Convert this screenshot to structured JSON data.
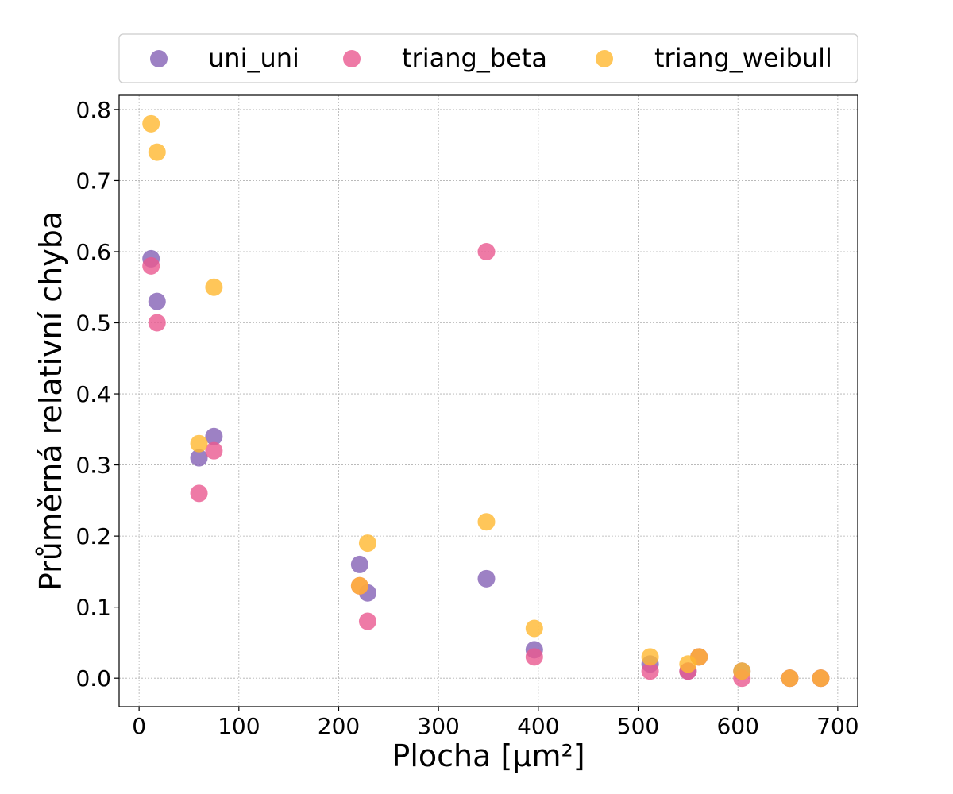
{
  "chart_data": {
    "type": "scatter",
    "title": "",
    "xlabel": "Plocha [µm²]",
    "ylabel": "Průměrná relativní chyba",
    "xlim": [
      -20,
      720
    ],
    "ylim": [
      -0.04,
      0.82
    ],
    "xticks": [
      0,
      100,
      200,
      300,
      400,
      500,
      600,
      700
    ],
    "yticks": [
      0.0,
      0.1,
      0.2,
      0.3,
      0.4,
      0.5,
      0.6,
      0.7,
      0.8
    ],
    "xtick_labels": [
      "0",
      "100",
      "200",
      "300",
      "400",
      "500",
      "600",
      "700"
    ],
    "ytick_labels": [
      "0.0",
      "0.1",
      "0.2",
      "0.3",
      "0.4",
      "0.5",
      "0.6",
      "0.7",
      "0.8"
    ],
    "grid": true,
    "legend_position": "top",
    "series": [
      {
        "name": "uni_uni",
        "color": "#8461b5",
        "points": [
          [
            12,
            0.59
          ],
          [
            18,
            0.53
          ],
          [
            60,
            0.31
          ],
          [
            75,
            0.34
          ],
          [
            221,
            0.16
          ],
          [
            229,
            0.12
          ],
          [
            348,
            0.14
          ],
          [
            396,
            0.04
          ],
          [
            512,
            0.02
          ],
          [
            550,
            0.01
          ],
          [
            561,
            0.03
          ],
          [
            604,
            0.01
          ],
          [
            652,
            0.0
          ],
          [
            683,
            0.0
          ]
        ]
      },
      {
        "name": "triang_beta",
        "color": "#ea5990",
        "points": [
          [
            12,
            0.58
          ],
          [
            18,
            0.5
          ],
          [
            60,
            0.26
          ],
          [
            75,
            0.32
          ],
          [
            221,
            0.13
          ],
          [
            229,
            0.08
          ],
          [
            348,
            0.6
          ],
          [
            396,
            0.03
          ],
          [
            512,
            0.01
          ],
          [
            550,
            0.01
          ],
          [
            561,
            0.03
          ],
          [
            604,
            0.0
          ],
          [
            652,
            0.0
          ],
          [
            683,
            0.0
          ]
        ]
      },
      {
        "name": "triang_weibull",
        "color": "#ffb830",
        "points": [
          [
            12,
            0.78
          ],
          [
            18,
            0.74
          ],
          [
            60,
            0.33
          ],
          [
            75,
            0.55
          ],
          [
            221,
            0.13
          ],
          [
            229,
            0.19
          ],
          [
            348,
            0.22
          ],
          [
            396,
            0.07
          ],
          [
            512,
            0.03
          ],
          [
            550,
            0.02
          ],
          [
            561,
            0.03
          ],
          [
            604,
            0.01
          ],
          [
            652,
            0.0
          ],
          [
            683,
            0.0
          ]
        ]
      }
    ]
  }
}
